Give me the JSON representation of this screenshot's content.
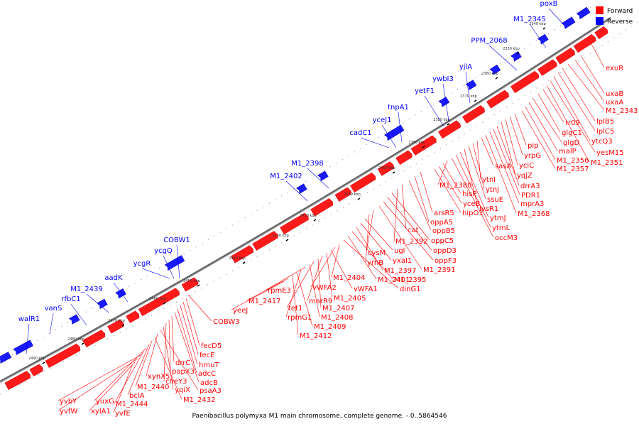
{
  "caption": "Paenibacillus polymyxa M1 main chromosome, complete genome. - 0..5864546",
  "legend": [
    {
      "label": "Forward",
      "color": "#ff0000"
    },
    {
      "label": "Reverse",
      "color": "#0000ff"
    }
  ],
  "colors": {
    "forward": "#ff0000",
    "reverse": "#0000ff",
    "backbone": "#666666"
  },
  "ticks": [
    "2340 kbp",
    "2350 kbp",
    "2360 kbp",
    "2370 kbp",
    "2380 kbp",
    "2390 kbp",
    "2400 kbp",
    "2410 kbp",
    "2420 kbp",
    "2430 kbp",
    "2440 kbp",
    "2450 kbp",
    "2460 kbp",
    "2470 kbp",
    "2480 kbp",
    "2490 kbp"
  ],
  "reverse_labels": [
    "poxB",
    "M1_2345",
    "PPM_2068",
    "yjlA",
    "ywbI3",
    "yetF1",
    "tnpA1",
    "yceJ1",
    "cadC1",
    "M1_2398",
    "M1_2402",
    "COBW1",
    "ycgQ",
    "ycgR",
    "aadK",
    "M1_2439",
    "rfbC1",
    "vanS",
    "walR1"
  ],
  "forward_labels_right": [
    "exuR",
    "uxaB",
    "uxaA",
    "M1_2343",
    "lplB5",
    "lplC5",
    "ytcQ3",
    "yesM15",
    "M1_2351",
    "rr09",
    "glgC1",
    "glgD",
    "malP",
    "M1_2356",
    "M1_2357",
    "pip",
    "yrpG",
    "yciC",
    "yqjZ",
    "drrA3",
    "PDR1",
    "mprA3",
    "M1_2368",
    "sasA",
    "ytnI",
    "ytnJ",
    "ssuE",
    "lysR1",
    "ytmJ",
    "ytmL",
    "occM3",
    "M1_2380",
    "hisP",
    "yceB",
    "hipO1"
  ],
  "forward_labels_mid": [
    "arsR5",
    "oppA5",
    "oppB5",
    "cat",
    "M1_2392",
    "oppC5",
    "oppD3",
    "oppF3",
    "M1_2391",
    "cysM",
    "yrhB",
    "ugl",
    "yxaI1",
    "M1_2397",
    "M1_2395",
    "M1_2401",
    "dinG1",
    "M1_2404",
    "vWFA2",
    "vWFA1",
    "M1_2405",
    "marR9",
    "M1_2407",
    "tet1",
    "M1_2408",
    "rpmE3",
    "rpmG1",
    "M1_2409",
    "M1_2412",
    "M1_2417",
    "yeeJ"
  ],
  "forward_labels_left": [
    "COBW3",
    "fecD5",
    "fecE",
    "hmuT",
    "adcC",
    "adcB",
    "drrC",
    "papX3",
    "cheY3",
    "yqiX",
    "psaA3",
    "xynX5",
    "M1_2432",
    "M1_2440",
    "bclA",
    "yuxG",
    "M1_2444",
    "yvbY",
    "yvfW",
    "xylA1",
    "yvfE"
  ]
}
